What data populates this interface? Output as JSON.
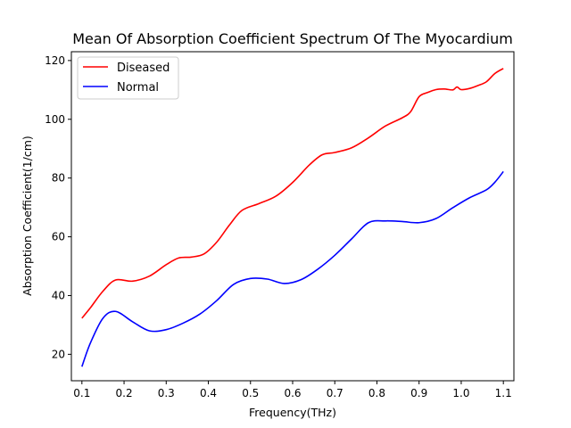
{
  "chart_data": {
    "type": "line",
    "title": "Mean Of Absorption Coefficient Spectrum Of The Myocardium",
    "xlabel": "Frequency(THz)",
    "ylabel": "Absorption Coefficient(1/cm)",
    "xlim": [
      0.075,
      1.125
    ],
    "ylim": [
      11,
      123
    ],
    "xticks": [
      0.1,
      0.2,
      0.3,
      0.4,
      0.5,
      0.6,
      0.7,
      0.8,
      0.9,
      1.0,
      1.1
    ],
    "xtick_labels": [
      "0.1",
      "0.2",
      "0.3",
      "0.4",
      "0.5",
      "0.6",
      "0.7",
      "0.8",
      "0.9",
      "1.0",
      "1.1"
    ],
    "yticks": [
      20,
      40,
      60,
      80,
      100,
      120
    ],
    "ytick_labels": [
      "20",
      "40",
      "60",
      "80",
      "100",
      "120"
    ],
    "grid": false,
    "legend": {
      "placement": "upper-left",
      "entries": [
        "Diseased",
        "Normal"
      ]
    },
    "series": [
      {
        "name": "Diseased",
        "color": "#ff0000",
        "x": [
          0.1,
          0.12,
          0.15,
          0.18,
          0.22,
          0.26,
          0.3,
          0.33,
          0.36,
          0.39,
          0.42,
          0.45,
          0.48,
          0.52,
          0.56,
          0.6,
          0.64,
          0.67,
          0.7,
          0.74,
          0.78,
          0.82,
          0.86,
          0.88,
          0.9,
          0.92,
          0.94,
          0.96,
          0.98,
          0.99,
          1.0,
          1.02,
          1.04,
          1.06,
          1.08,
          1.1
        ],
        "y": [
          32.3,
          35.8,
          41.5,
          45.3,
          44.9,
          46.6,
          50.5,
          52.8,
          53.1,
          54.2,
          58.2,
          64.0,
          69.0,
          71.3,
          73.8,
          78.5,
          84.5,
          87.9,
          88.7,
          90.3,
          93.7,
          97.7,
          100.5,
          102.6,
          107.7,
          109.1,
          110.1,
          110.3,
          110.0,
          111.0,
          110.1,
          110.5,
          111.5,
          112.8,
          115.6,
          117.3
        ]
      },
      {
        "name": "Normal",
        "color": "#0000ff",
        "x": [
          0.1,
          0.12,
          0.15,
          0.18,
          0.22,
          0.26,
          0.3,
          0.34,
          0.38,
          0.42,
          0.46,
          0.5,
          0.54,
          0.58,
          0.62,
          0.66,
          0.7,
          0.74,
          0.78,
          0.82,
          0.86,
          0.9,
          0.94,
          0.98,
          1.02,
          1.06,
          1.08,
          1.1
        ],
        "y": [
          15.8,
          23.8,
          32.3,
          34.6,
          31.1,
          28.0,
          28.4,
          30.6,
          33.7,
          38.3,
          43.8,
          45.8,
          45.6,
          44.1,
          45.4,
          49.0,
          53.7,
          59.3,
          64.8,
          65.4,
          65.2,
          64.8,
          66.2,
          69.9,
          73.3,
          76.0,
          78.6,
          82.2
        ]
      }
    ]
  }
}
